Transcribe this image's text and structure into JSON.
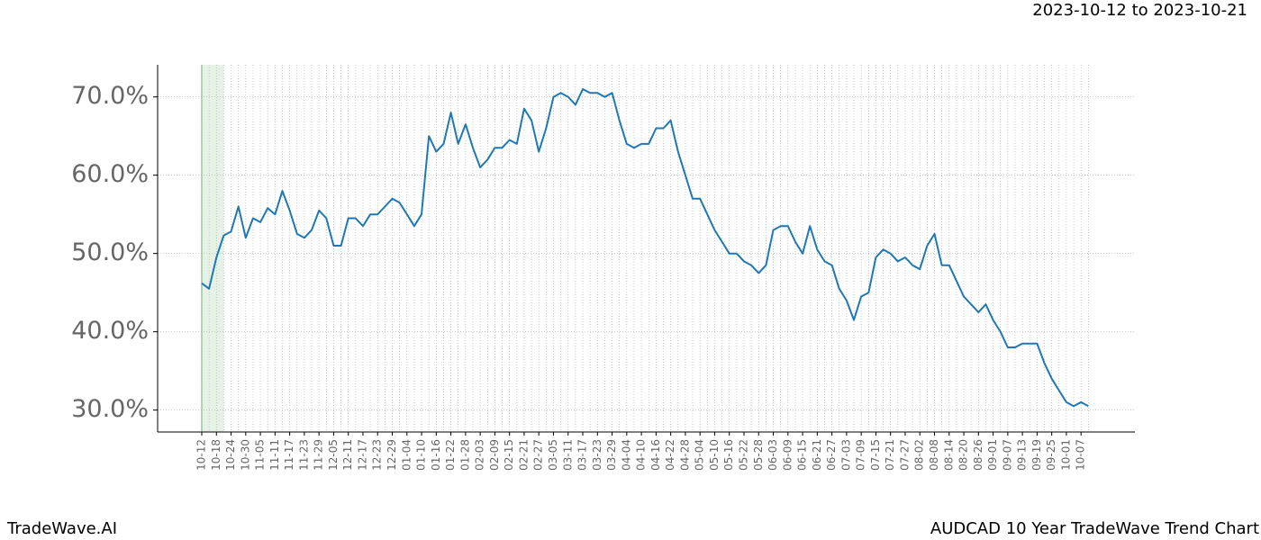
{
  "chart_data": {
    "type": "line",
    "subtitle": "2023-10-12 to 2023-10-21",
    "footer_left": "TradeWave.AI",
    "footer_right": "AUDCAD 10 Year TradeWave Trend Chart",
    "categories": [
      "10-12",
      null,
      "10-18",
      null,
      "10-24",
      null,
      "10-30",
      null,
      "11-05",
      null,
      "11-11",
      null,
      "11-17",
      null,
      "11-23",
      null,
      "11-29",
      null,
      "12-05",
      null,
      "12-11",
      null,
      "12-17",
      null,
      "12-23",
      null,
      "12-29",
      null,
      "01-04",
      null,
      "01-10",
      null,
      "01-16",
      null,
      "01-22",
      null,
      "01-28",
      null,
      "02-03",
      null,
      "02-09",
      null,
      "02-15",
      null,
      "02-21",
      null,
      "02-27",
      null,
      "03-05",
      null,
      "03-11",
      null,
      "03-17",
      null,
      "03-23",
      null,
      "03-29",
      null,
      "04-04",
      null,
      "04-10",
      null,
      "04-16",
      null,
      "04-22",
      null,
      "04-28",
      null,
      "05-04",
      null,
      "05-10",
      null,
      "05-16",
      null,
      "05-22",
      null,
      "05-28",
      null,
      "06-03",
      null,
      "06-09",
      null,
      "06-15",
      null,
      "06-21",
      null,
      "06-27",
      null,
      "07-03",
      null,
      "07-09",
      null,
      "07-15",
      null,
      "07-21",
      null,
      "07-27",
      null,
      "08-02",
      null,
      "08-08",
      null,
      "08-14",
      null,
      "08-20",
      null,
      "08-26",
      null,
      "09-01",
      null,
      "09-07",
      null,
      "09-13",
      null,
      "09-19",
      null,
      "09-25",
      null,
      "10-01",
      null,
      "10-07",
      null
    ],
    "series": [
      {
        "name": "AUDCAD",
        "color": "#1f77b4",
        "values": [
          46.2,
          45.5,
          49.5,
          52.3,
          52.8,
          56.0,
          52.0,
          54.5,
          54.0,
          55.8,
          55.0,
          58.0,
          55.5,
          52.5,
          52.0,
          53.0,
          55.5,
          54.5,
          51.0,
          51.0,
          54.5,
          54.5,
          53.5,
          55.0,
          55.0,
          56.0,
          57.0,
          56.5,
          55.0,
          53.5,
          55.0,
          65.0,
          63.0,
          64.0,
          68.0,
          64.0,
          66.5,
          63.5,
          61.0,
          62.0,
          63.5,
          63.5,
          64.5,
          64.0,
          68.5,
          67.0,
          63.0,
          66.0,
          70.0,
          70.5,
          70.0,
          69.0,
          71.0,
          70.5,
          70.5,
          70.0,
          70.5,
          67.0,
          64.0,
          63.5,
          64.0,
          64.0,
          66.0,
          66.0,
          67.0,
          63.0,
          60.0,
          57.0,
          57.0,
          55.0,
          53.0,
          51.5,
          50.0,
          50.0,
          49.0,
          48.5,
          47.5,
          48.5,
          53.0,
          53.5,
          53.5,
          51.5,
          50.0,
          53.5,
          50.5,
          49.0,
          48.5,
          45.5,
          44.0,
          41.5,
          44.5,
          45.0,
          49.5,
          50.5,
          50.0,
          49.0,
          49.5,
          48.5,
          48.0,
          51.0,
          52.5,
          48.5,
          48.5,
          46.5,
          44.5,
          43.5,
          42.5,
          43.5,
          41.5,
          40.0,
          38.0,
          38.0,
          38.5,
          38.5,
          38.5,
          36.0,
          34.0,
          32.5,
          31.0,
          30.5,
          31.0,
          30.5
        ]
      }
    ],
    "highlight": {
      "start": 0,
      "end": 3,
      "color": "#e6f2e6"
    },
    "ylim": [
      27.2,
      74.1
    ],
    "yticks": [
      {
        "value": 30,
        "label": "30.0%"
      },
      {
        "value": 40,
        "label": "40.0%"
      },
      {
        "value": 50,
        "label": "50.0%"
      },
      {
        "value": 60,
        "label": "60.0%"
      },
      {
        "value": 70,
        "label": "70.0%"
      }
    ],
    "grid": true
  }
}
